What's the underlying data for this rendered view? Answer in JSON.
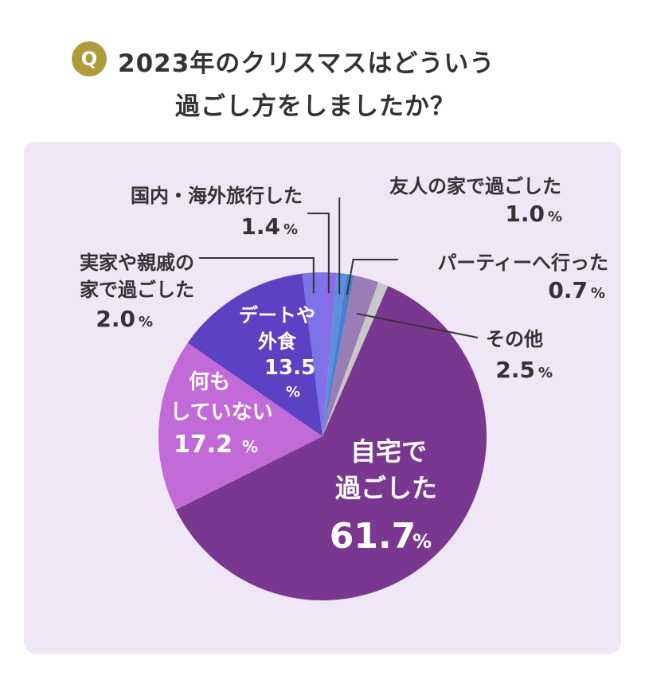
{
  "title": {
    "badge": "Q",
    "line1": "2023年のクリスマスはどういう",
    "line2": "過ごし方をしましたか？"
  },
  "colors": {
    "panel": "#efe6f6",
    "badge": "#b09a3c",
    "text": "#333333"
  },
  "chart_data": {
    "type": "pie",
    "title": "2023年のクリスマスはどういう過ごし方をしましたか？",
    "unit": "%",
    "start": "12 o'clock",
    "direction": "clockwise",
    "slices": [
      {
        "key": "kokunai",
        "label": "国内・海外旅行した",
        "value": 1.4,
        "value_text": "1.4",
        "color": "#8a6de8"
      },
      {
        "key": "yujin",
        "label": "友人の家で過ごした",
        "value": 1.0,
        "value_text": "1.0",
        "color": "#5b8fe0"
      },
      {
        "key": "party",
        "label": "パーティーへ行った",
        "value": 0.7,
        "value_text": "0.7",
        "color": "#4a7fcf"
      },
      {
        "key": "other",
        "label": "その他",
        "value": 2.5,
        "value_text": "2.5",
        "color": "#9b7db5"
      },
      {
        "key": "blank",
        "label": "",
        "value": 1.0,
        "value_text": "",
        "color": "#c8c8c8"
      },
      {
        "key": "jitaku",
        "label": "自宅で過ごした",
        "value": 61.7,
        "value_text": "61.7",
        "color": "#7a378f"
      },
      {
        "key": "nanimo",
        "label": "何もしていない",
        "value": 17.2,
        "value_text": "17.2",
        "color": "#c36ad9"
      },
      {
        "key": "date",
        "label": "デートや外食",
        "value": 13.5,
        "value_text": "13.5",
        "color": "#5a42c2"
      },
      {
        "key": "jikka",
        "label": "実家や親戚の家で過ごした",
        "value": 2.0,
        "value_text": "2.0",
        "color": "#7d72e8"
      }
    ],
    "labels": {
      "jitaku_l1": "自宅で",
      "jitaku_l2": "過ごした",
      "nanimo_l1": "何も",
      "nanimo_l2": "していない",
      "date_l1": "デートや",
      "date_l2": "外食",
      "kokunai": "国内・海外旅行した",
      "yujin": "友人の家で過ごした",
      "party": "パーティーへ行った",
      "other": "その他",
      "jikka_l1": "実家や親戚の",
      "jikka_l2": "家で過ごした",
      "percent": "%"
    }
  }
}
